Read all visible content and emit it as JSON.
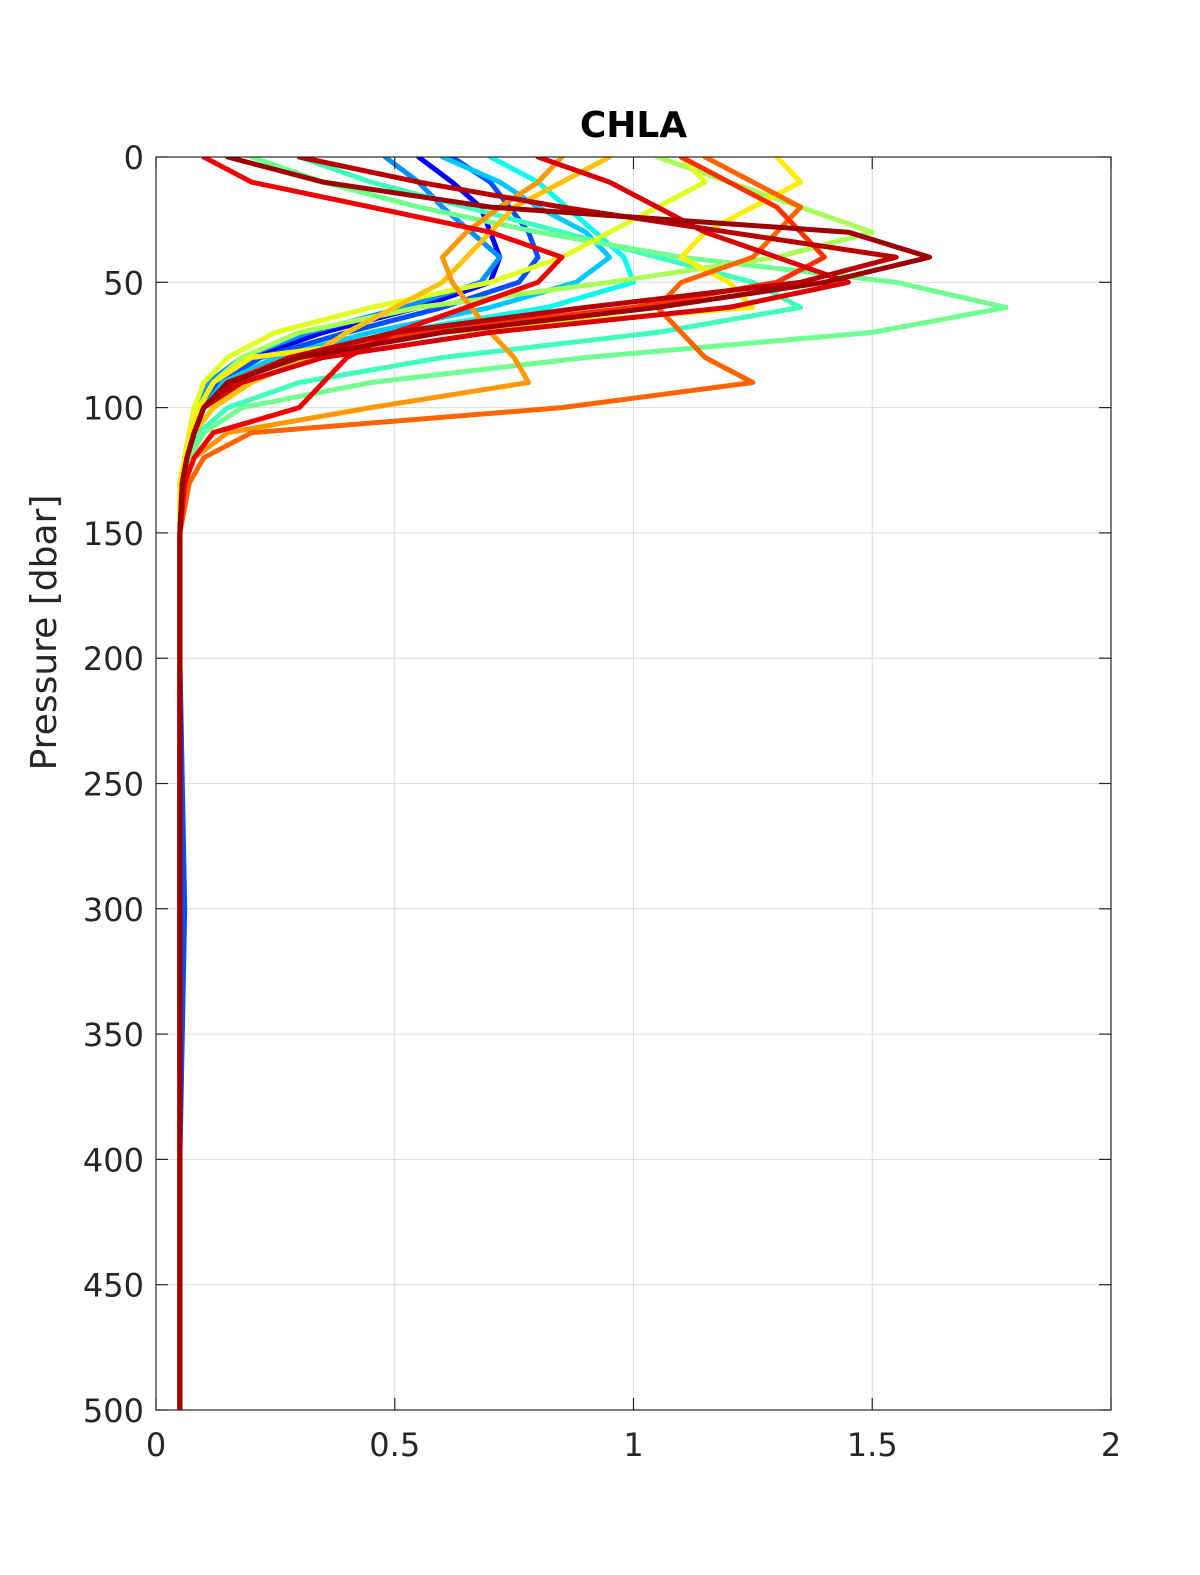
{
  "chart_data": {
    "type": "line",
    "title": "CHLA",
    "xlabel": "",
    "ylabel": "Pressure [dbar]",
    "xlim": [
      0,
      2
    ],
    "ylim": [
      0,
      500
    ],
    "y_reversed": true,
    "grid": true,
    "legend": "none",
    "x_ticks": [
      {
        "value": 0,
        "label": "0"
      },
      {
        "value": 0.5,
        "label": "0.5"
      },
      {
        "value": 1,
        "label": "1"
      },
      {
        "value": 1.5,
        "label": "1.5"
      },
      {
        "value": 2,
        "label": "2"
      }
    ],
    "y_ticks": [
      {
        "value": 0,
        "label": "0"
      },
      {
        "value": 50,
        "label": "50"
      },
      {
        "value": 100,
        "label": "100"
      },
      {
        "value": 150,
        "label": "150"
      },
      {
        "value": 200,
        "label": "200"
      },
      {
        "value": 250,
        "label": "250"
      },
      {
        "value": 300,
        "label": "300"
      },
      {
        "value": 350,
        "label": "350"
      },
      {
        "value": 400,
        "label": "400"
      },
      {
        "value": 450,
        "label": "450"
      },
      {
        "value": 500,
        "label": "500"
      }
    ],
    "depth_levels": [
      0,
      10,
      20,
      30,
      40,
      50,
      60,
      70,
      80,
      90,
      100,
      110,
      120,
      130,
      150,
      200,
      300,
      400,
      500
    ],
    "series": [
      {
        "color": "#0000ff",
        "values": [
          0.55,
          0.62,
          0.68,
          0.7,
          0.72,
          0.7,
          0.55,
          0.35,
          0.2,
          0.12,
          0.09,
          0.07,
          0.06,
          0.055,
          0.05,
          0.05,
          0.05,
          0.05,
          0.05
        ]
      },
      {
        "color": "#0050ff",
        "values": [
          0.62,
          0.7,
          0.74,
          0.78,
          0.8,
          0.76,
          0.6,
          0.4,
          0.22,
          0.13,
          0.09,
          0.07,
          0.06,
          0.055,
          0.05,
          0.05,
          0.06,
          0.05,
          0.05
        ]
      },
      {
        "color": "#0090ff",
        "values": [
          0.48,
          0.55,
          0.6,
          0.66,
          0.72,
          0.68,
          0.52,
          0.32,
          0.18,
          0.11,
          0.08,
          0.07,
          0.06,
          0.05,
          0.05,
          0.05,
          0.05,
          0.05,
          0.05
        ]
      },
      {
        "color": "#00c8ff",
        "values": [
          0.6,
          0.72,
          0.8,
          0.9,
          0.95,
          0.88,
          0.7,
          0.45,
          0.25,
          0.14,
          0.1,
          0.08,
          0.06,
          0.055,
          0.05,
          0.05,
          0.05,
          0.05,
          0.05
        ]
      },
      {
        "color": "#00ffee",
        "values": [
          0.7,
          0.8,
          0.86,
          0.92,
          0.98,
          1.0,
          0.82,
          0.5,
          0.28,
          0.15,
          0.1,
          0.08,
          0.065,
          0.055,
          0.05,
          0.05,
          0.05,
          0.05,
          0.05
        ]
      },
      {
        "color": "#40ffbe",
        "values": [
          0.3,
          0.45,
          0.65,
          0.85,
          1.05,
          1.25,
          1.35,
          1.05,
          0.6,
          0.3,
          0.15,
          0.09,
          0.07,
          0.06,
          0.05,
          0.05,
          0.05,
          0.05,
          0.05
        ]
      },
      {
        "color": "#70ff90",
        "values": [
          0.2,
          0.35,
          0.55,
          0.8,
          1.1,
          1.55,
          1.78,
          1.5,
          0.9,
          0.45,
          0.18,
          0.1,
          0.07,
          0.06,
          0.05,
          0.05,
          0.05,
          0.05,
          0.05
        ]
      },
      {
        "color": "#a8ff58",
        "values": [
          1.05,
          1.2,
          1.35,
          1.5,
          1.3,
          0.95,
          0.55,
          0.3,
          0.18,
          0.12,
          0.09,
          0.07,
          0.06,
          0.055,
          0.05,
          0.05,
          0.05,
          0.05,
          0.05
        ]
      },
      {
        "color": "#e0ff20",
        "values": [
          1.1,
          1.15,
          1.05,
          0.95,
          0.85,
          0.7,
          0.45,
          0.25,
          0.15,
          0.1,
          0.08,
          0.07,
          0.06,
          0.05,
          0.05,
          0.05,
          0.05,
          0.05,
          0.05
        ]
      },
      {
        "color": "#ffee00",
        "values": [
          1.3,
          1.35,
          1.25,
          1.15,
          1.1,
          1.2,
          1.25,
          0.6,
          0.2,
          0.12,
          0.09,
          0.07,
          0.06,
          0.05,
          0.05,
          0.05,
          0.05,
          0.05,
          0.05
        ]
      },
      {
        "color": "#ffc000",
        "values": [
          0.95,
          0.85,
          0.75,
          0.7,
          0.65,
          0.6,
          0.5,
          0.4,
          0.32,
          0.2,
          0.12,
          0.08,
          0.065,
          0.055,
          0.05,
          0.05,
          0.05,
          0.05,
          0.05
        ]
      },
      {
        "color": "#ff9800",
        "values": [
          0.85,
          0.8,
          0.72,
          0.65,
          0.6,
          0.62,
          0.66,
          0.7,
          0.75,
          0.78,
          0.45,
          0.15,
          0.08,
          0.06,
          0.05,
          0.05,
          0.05,
          0.05,
          0.05
        ]
      },
      {
        "color": "#ff6400",
        "values": [
          1.15,
          1.25,
          1.35,
          1.3,
          1.25,
          1.1,
          1.05,
          1.1,
          1.15,
          1.25,
          0.85,
          0.2,
          0.1,
          0.07,
          0.05,
          0.05,
          0.05,
          0.05,
          0.05
        ]
      },
      {
        "color": "#ff3000",
        "values": [
          1.1,
          1.2,
          1.3,
          1.35,
          1.4,
          1.3,
          1.0,
          0.55,
          0.28,
          0.15,
          0.1,
          0.08,
          0.065,
          0.055,
          0.05,
          0.05,
          0.05,
          0.05,
          0.05
        ]
      },
      {
        "color": "#f00000",
        "values": [
          0.1,
          0.2,
          0.45,
          0.7,
          0.85,
          0.8,
          0.65,
          0.5,
          0.4,
          0.35,
          0.3,
          0.12,
          0.08,
          0.06,
          0.05,
          0.05,
          0.05,
          0.05,
          0.05
        ]
      },
      {
        "color": "#d80000",
        "values": [
          0.8,
          0.95,
          1.05,
          1.15,
          1.3,
          1.45,
          1.2,
          0.7,
          0.35,
          0.18,
          0.1,
          0.08,
          0.065,
          0.055,
          0.05,
          0.05,
          0.05,
          0.05,
          0.05
        ]
      },
      {
        "color": "#b80000",
        "values": [
          0.3,
          0.55,
          0.85,
          1.2,
          1.55,
          1.35,
          0.9,
          0.5,
          0.28,
          0.16,
          0.1,
          0.08,
          0.065,
          0.055,
          0.05,
          0.05,
          0.05,
          0.05,
          0.05
        ]
      },
      {
        "color": "#9c0000",
        "values": [
          0.15,
          0.35,
          0.7,
          1.45,
          1.62,
          1.4,
          1.05,
          0.6,
          0.3,
          0.15,
          0.1,
          0.08,
          0.065,
          0.055,
          0.05,
          0.05,
          0.05,
          0.05,
          0.05
        ]
      }
    ]
  }
}
